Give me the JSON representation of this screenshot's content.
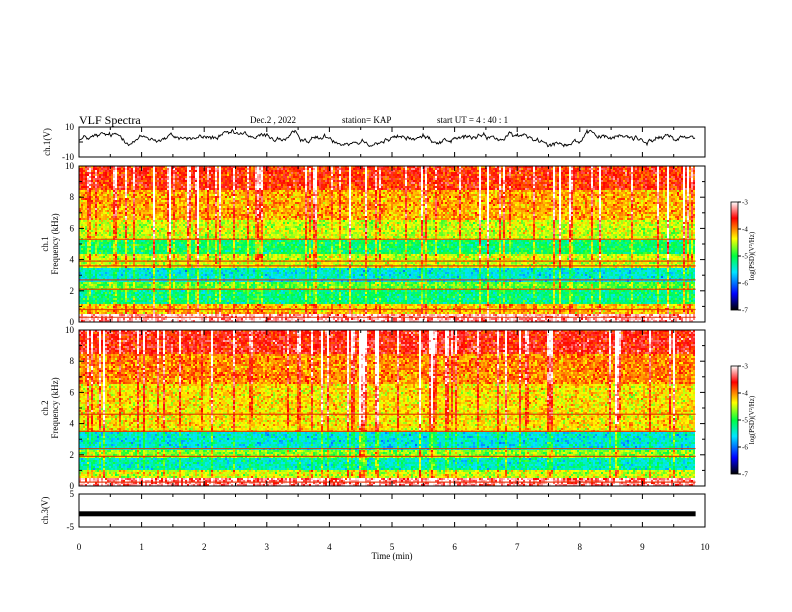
{
  "header": {
    "title": "VLF Spectra",
    "date": "Dec.2 , 2022",
    "station": "station= KAP",
    "start": "start UT = 4 : 40 : 1"
  },
  "colors": {
    "colormap": [
      "#000000",
      "#0000ff",
      "#00e5ff",
      "#00ff40",
      "#ffff00",
      "#ff0000",
      "#ffffff"
    ]
  },
  "chart_data": [
    {
      "type": "line",
      "panel": "waveform-ch1",
      "ylabel": "ch.1(V)",
      "ylim": [
        -10,
        10
      ],
      "yticks": [
        "10",
        "-10"
      ],
      "xlim": [
        0,
        10
      ],
      "series": [
        {
          "approx_mean": 2.5,
          "approx_range": [
            -5,
            10
          ],
          "x_end": 9.85
        }
      ]
    },
    {
      "type": "heatmap",
      "panel": "spectrogram-ch1",
      "ylabel": "ch.1 Frequency (kHz)",
      "ylim": [
        0,
        10
      ],
      "yticks": [
        "0",
        "2",
        "4",
        "6",
        "8",
        "10"
      ],
      "x_end": 9.85,
      "bands": [
        {
          "from": 0,
          "to": 0.5,
          "level": -3.2
        },
        {
          "from": 0.5,
          "to": 1.2,
          "level": -4.2
        },
        {
          "from": 1.2,
          "to": 2.0,
          "level": -5.2
        },
        {
          "from": 2.0,
          "to": 2.6,
          "level": -4.8
        },
        {
          "from": 2.6,
          "to": 3.5,
          "level": -5.5
        },
        {
          "from": 3.5,
          "to": 4.3,
          "level": -4.5
        },
        {
          "from": 4.3,
          "to": 5.2,
          "level": -5.1
        },
        {
          "from": 5.2,
          "to": 6.5,
          "level": -4.5
        },
        {
          "from": 6.5,
          "to": 8.5,
          "level": -4.1
        },
        {
          "from": 8.5,
          "to": 10,
          "level": -3.7
        }
      ],
      "lines_khz": [
        0.3,
        0.8,
        2.1,
        2.7,
        3.6,
        3.9,
        5.3
      ],
      "colorbar": {
        "label": "log(PSD)(V²/Hz)",
        "range": [
          -7,
          -3
        ],
        "ticks": [
          "-3",
          "-4",
          "-5",
          "-6",
          "-7"
        ]
      }
    },
    {
      "type": "heatmap",
      "panel": "spectrogram-ch2",
      "ylabel": "ch.2 Frequency (kHz)",
      "ylim": [
        0,
        10
      ],
      "yticks": [
        "0",
        "2",
        "4",
        "6",
        "8",
        "10"
      ],
      "x_end": 9.85,
      "bands": [
        {
          "from": 0,
          "to": 0.5,
          "level": -3.3
        },
        {
          "from": 0.5,
          "to": 1.0,
          "level": -4.5
        },
        {
          "from": 1.0,
          "to": 1.8,
          "level": -5.4
        },
        {
          "from": 1.8,
          "to": 2.3,
          "level": -4.7
        },
        {
          "from": 2.3,
          "to": 3.4,
          "level": -5.5
        },
        {
          "from": 3.4,
          "to": 4.4,
          "level": -4.3
        },
        {
          "from": 4.4,
          "to": 6.5,
          "level": -4.3
        },
        {
          "from": 6.5,
          "to": 8.5,
          "level": -4.0
        },
        {
          "from": 8.5,
          "to": 10,
          "level": -3.6
        }
      ],
      "lines_khz": [
        0.25,
        1.9,
        2.4,
        3.5,
        4.6
      ],
      "colorbar": {
        "label": "log(PSD)(V²/Hz)",
        "range": [
          -7,
          -3
        ],
        "ticks": [
          "-3",
          "-4",
          "-5",
          "-6",
          "-7"
        ]
      }
    },
    {
      "type": "line",
      "panel": "waveform-ch3",
      "ylabel": "ch.3(V)",
      "ylim": [
        -5,
        5
      ],
      "yticks": [
        "5",
        "-5"
      ],
      "xlim": [
        0,
        10
      ],
      "xticks": [
        "0",
        "1",
        "2",
        "3",
        "4",
        "5",
        "6",
        "7",
        "8",
        "9",
        "10"
      ],
      "xlabel": "Time (min)",
      "series": [
        {
          "approx_value": -1.0,
          "x_end": 9.85
        }
      ]
    }
  ]
}
